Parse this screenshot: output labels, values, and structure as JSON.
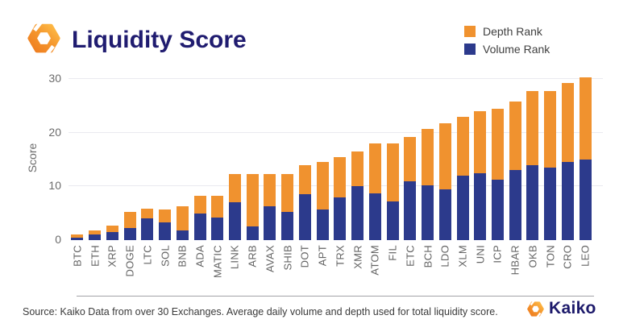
{
  "header": {
    "title": "Liquidity Score"
  },
  "legend": [
    {
      "label": "Depth Rank",
      "color": "#F0922F"
    },
    {
      "label": "Volume Rank",
      "color": "#2C3A8C"
    }
  ],
  "chart_data": {
    "type": "bar",
    "stacked": true,
    "title": "Liquidity Score",
    "xlabel": "",
    "ylabel": "Score",
    "ylim": [
      0,
      30
    ],
    "yticks": [
      0,
      10,
      20,
      30
    ],
    "grid": "horizontal",
    "legend_position": "top-right",
    "categories": [
      "BTC",
      "ETH",
      "XRP",
      "DOGE",
      "LTC",
      "SOL",
      "BNB",
      "ADA",
      "MATIC",
      "LINK",
      "ARB",
      "AVAX",
      "SHIB",
      "DOT",
      "APT",
      "TRX",
      "XMR",
      "ATOM",
      "FIL",
      "ETC",
      "BCH",
      "LDO",
      "XLM",
      "UNI",
      "ICP",
      "HBAR",
      "OKB",
      "TON",
      "CRO",
      "LEO"
    ],
    "series": [
      {
        "name": "Volume Rank",
        "color": "#2C3A8C",
        "values": [
          0.5,
          1.0,
          1.5,
          2.25,
          4.0,
          3.25,
          1.75,
          5.0,
          4.25,
          7.0,
          2.5,
          6.25,
          5.25,
          8.5,
          5.75,
          8.0,
          10.0,
          8.75,
          7.25,
          11.0,
          10.25,
          9.5,
          12.0,
          12.5,
          11.25,
          13.0,
          14.0,
          13.5,
          14.5,
          15.0
        ]
      },
      {
        "name": "Depth Rank",
        "color": "#F0922F",
        "values": [
          0.6,
          0.75,
          1.25,
          3.0,
          1.9,
          2.5,
          4.5,
          3.25,
          4.0,
          5.25,
          9.75,
          6.0,
          7.0,
          5.5,
          8.75,
          7.5,
          6.5,
          9.25,
          10.75,
          8.25,
          10.5,
          12.25,
          11.0,
          11.5,
          13.25,
          12.75,
          13.75,
          14.25,
          14.75,
          15.25
        ]
      }
    ]
  },
  "footer": {
    "source": "Source: Kaiko Data from over 30 Exchanges. Average daily volume and depth used for total liquidity score.",
    "brand": "Kaiko"
  },
  "colors": {
    "accent_orange": "#F0922F",
    "accent_navy": "#2C3A8C",
    "title_navy": "#201C70",
    "grid": "#EAEAF0",
    "tick_text": "#6B6B6B"
  }
}
